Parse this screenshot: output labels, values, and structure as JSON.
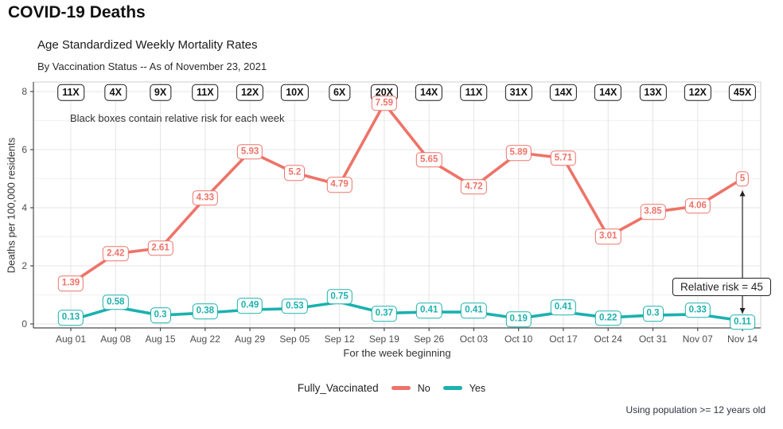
{
  "header": {
    "title": "COVID-19 Deaths"
  },
  "chart": {
    "title": "Age Standardized Weekly Mortality Rates",
    "subtitle": "By Vaccination Status -- As of November 23, 2021",
    "annotation": "Black boxes contain relative risk for each week",
    "callout": "Relative risk = 45",
    "xlabel": "For the week beginning",
    "ylabel": "Deaths per 100,000 residents",
    "legend_title": "Fully_Vaccinated",
    "footnote": "Using population >= 12 years old"
  },
  "chart_data": {
    "type": "line",
    "title": "Age Standardized Weekly Mortality Rates",
    "subtitle": "By Vaccination Status -- As of November 23, 2021",
    "xlabel": "For the week beginning",
    "ylabel": "Deaths per 100,000 residents",
    "categories": [
      "Aug 01",
      "Aug 08",
      "Aug 15",
      "Aug 22",
      "Aug 29",
      "Sep 05",
      "Sep 12",
      "Sep 19",
      "Sep 26",
      "Oct 03",
      "Oct 10",
      "Oct 17",
      "Oct 24",
      "Oct 31",
      "Nov 07",
      "Nov 14"
    ],
    "series": [
      {
        "name": "No",
        "color": "#ee7368",
        "values": [
          1.39,
          2.42,
          2.61,
          4.33,
          5.93,
          5.2,
          4.79,
          7.59,
          5.65,
          4.72,
          5.89,
          5.71,
          3.01,
          3.85,
          4.06,
          5
        ]
      },
      {
        "name": "Yes",
        "color": "#1bb1ae",
        "values": [
          0.13,
          0.58,
          0.3,
          0.38,
          0.49,
          0.53,
          0.75,
          0.37,
          0.41,
          0.41,
          0.19,
          0.41,
          0.22,
          0.3,
          0.33,
          0.11
        ]
      }
    ],
    "relative_risk_labels": [
      "11X",
      "4X",
      "9X",
      "11X",
      "12X",
      "10X",
      "6X",
      "20X",
      "14X",
      "11X",
      "31X",
      "14X",
      "14X",
      "13X",
      "12X",
      "45X"
    ],
    "yticks": [
      0,
      2,
      4,
      6,
      8
    ],
    "ylim": [
      0,
      8
    ],
    "legend_title": "Fully_Vaccinated",
    "legend_position": "bottom",
    "grid": "on",
    "annotations": [
      "Black boxes contain relative risk for each week",
      "Relative risk = 45"
    ]
  }
}
